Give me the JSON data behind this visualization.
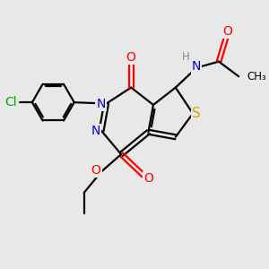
{
  "bg_color": "#e8e8e8",
  "atom_colors": {
    "C": "#000000",
    "N": "#0000cc",
    "O": "#ff0000",
    "S": "#ccaa00",
    "Cl": "#00aa00",
    "H": "#888888"
  },
  "figsize": [
    3.0,
    3.0
  ],
  "dpi": 100,
  "lw": 1.6,
  "font_size": 9.5
}
